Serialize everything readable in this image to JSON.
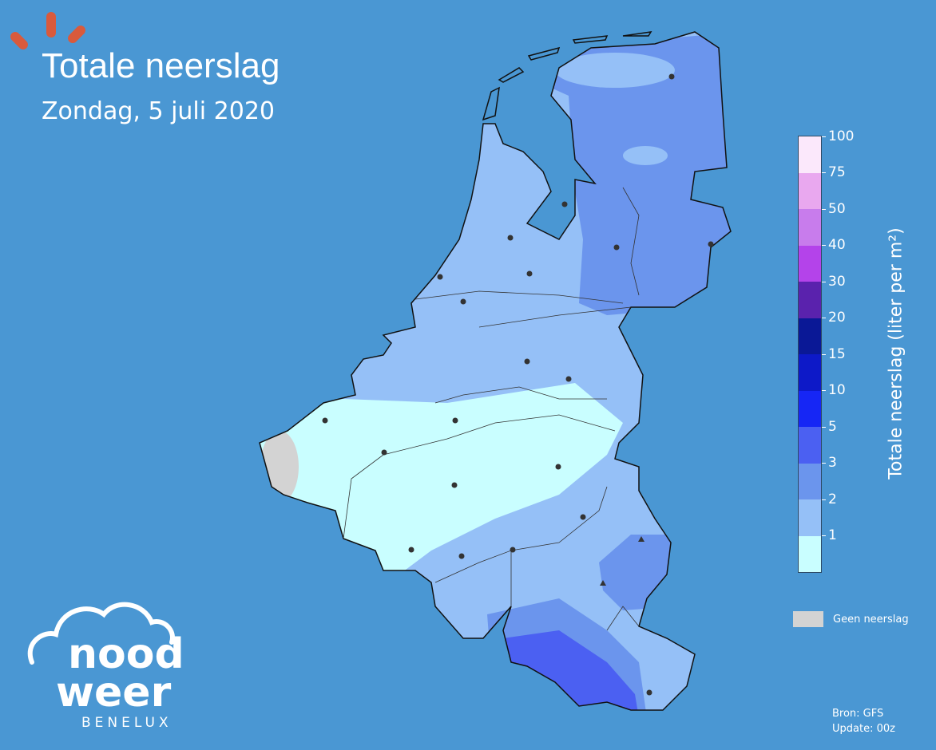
{
  "header": {
    "title": "Totale neerslag",
    "subtitle": "Zondag, 5 juli 2020"
  },
  "colorbar": {
    "label": "Totale neerslag (liter per m²)",
    "ticks": [
      "100",
      "75",
      "50",
      "40",
      "30",
      "20",
      "15",
      "10",
      "5",
      "3",
      "2",
      "1"
    ],
    "colors_top_to_bottom": [
      "#fbe8fb",
      "#e9a8ef",
      "#c87cec",
      "#b443ea",
      "#5a22ad",
      "#0a1896",
      "#0d19c8",
      "#1626f5",
      "#4b60f2",
      "#6b95ed",
      "#95c0f7",
      "#c9feff"
    ]
  },
  "legend": {
    "no_precip_label": "Geen neerslag",
    "no_precip_color": "#d3d3d3"
  },
  "source": {
    "line1": "Bron: GFS",
    "line2": "Update: 00z"
  },
  "logo": {
    "line1": "nood",
    "line2": "weer",
    "line3": "BENELUX",
    "accent": "#d95a3c"
  },
  "map": {
    "background": "#4a97d3",
    "region_colors": {
      "0-1": "#c9feff",
      "1-2": "#95c0f7",
      "2-3": "#6b95ed",
      "3-5": "#4b60f2"
    }
  }
}
